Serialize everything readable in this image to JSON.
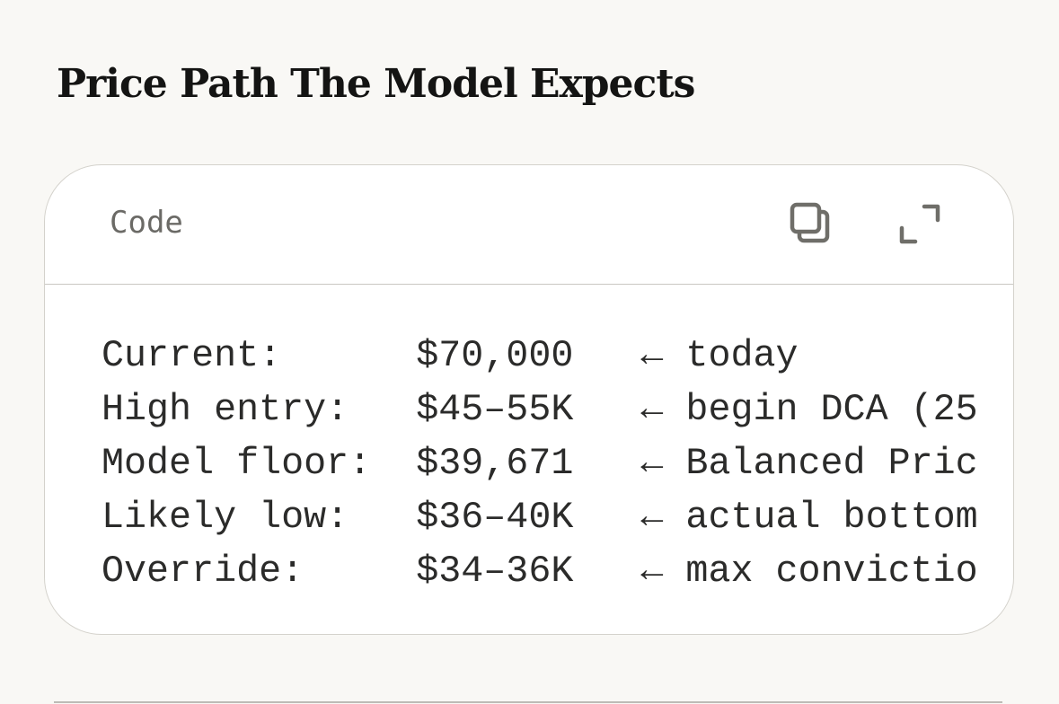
{
  "heading": "Price Path The Model Expects",
  "code_block": {
    "language_label": "Code",
    "copy_icon": "copy-icon",
    "expand_icon": "expand-icon",
    "lines": [
      "Current:      $70,000   ← today",
      "High entry:   $45–55K   ← begin DCA (25",
      "Model floor:  $39,671   ← Balanced Pric",
      "Likely low:   $36–40K   ← actual bottom",
      "Override:     $34–36K   ← max convictio"
    ]
  }
}
